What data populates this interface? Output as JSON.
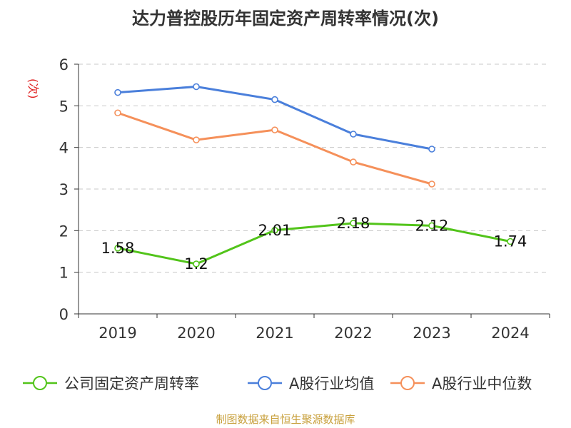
{
  "chart_data": {
    "type": "line",
    "title": "达力普控股历年固定资产周转率情况(次)",
    "ylabel": "(次)",
    "xlabel": "",
    "categories": [
      "2019",
      "2020",
      "2021",
      "2022",
      "2023",
      "2024"
    ],
    "ylim": [
      0,
      6
    ],
    "yticks": [
      0,
      1,
      2,
      3,
      4,
      5,
      6
    ],
    "grid": true,
    "legend_position": "bottom",
    "series": [
      {
        "name": "公司固定资产周转率",
        "color": "#52c41a",
        "values": [
          1.58,
          1.2,
          2.01,
          2.18,
          2.12,
          1.74
        ],
        "data_labels": [
          "1.58",
          "1.2",
          "2.01",
          "2.18",
          "2.12",
          "1.74"
        ]
      },
      {
        "name": "A股行业均值",
        "color": "#4a7fdb",
        "values": [
          5.32,
          5.46,
          5.15,
          4.32,
          3.96,
          null
        ]
      },
      {
        "name": "A股行业中位数",
        "color": "#f5905a",
        "values": [
          4.83,
          4.18,
          4.42,
          3.65,
          3.12,
          null
        ]
      }
    ]
  },
  "source": "制图数据来自恒生聚源数据库"
}
